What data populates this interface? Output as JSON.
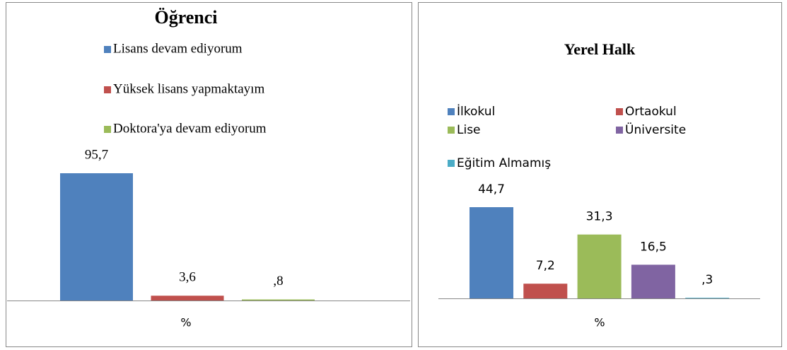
{
  "chart_data": [
    {
      "type": "bar",
      "title": "Öğrenci",
      "categories": [
        "%"
      ],
      "series": [
        {
          "name": "Lisans devam ediyorum",
          "color": "#4f81bd",
          "values": [
            95.7
          ],
          "value_labels": [
            "95,7"
          ]
        },
        {
          "name": "Yüksek lisans yapmaktayım",
          "color": "#c0504d",
          "values": [
            3.6
          ],
          "value_labels": [
            "3,6"
          ]
        },
        {
          "name": "Doktora'ya devam ediyorum",
          "color": "#9bbb59",
          "values": [
            0.8
          ],
          "value_labels": [
            ",8"
          ]
        }
      ]
    },
    {
      "type": "bar",
      "title": "Yerel Halk",
      "categories": [
        "%"
      ],
      "series": [
        {
          "name": "İlkokul",
          "color": "#4f81bd",
          "values": [
            44.7
          ],
          "value_labels": [
            "44,7"
          ]
        },
        {
          "name": "Ortaokul",
          "color": "#c0504d",
          "values": [
            7.2
          ],
          "value_labels": [
            "7,2"
          ]
        },
        {
          "name": "Lise",
          "color": "#9bbb59",
          "values": [
            31.3
          ],
          "value_labels": [
            "31,3"
          ]
        },
        {
          "name": "Üniversite",
          "color": "#8064a2",
          "values": [
            16.5
          ],
          "value_labels": [
            "16,5"
          ]
        },
        {
          "name": "Eğitim Almamış",
          "color": "#4bacc6",
          "values": [
            0.3
          ],
          "value_labels": [
            ",3"
          ]
        }
      ]
    }
  ]
}
